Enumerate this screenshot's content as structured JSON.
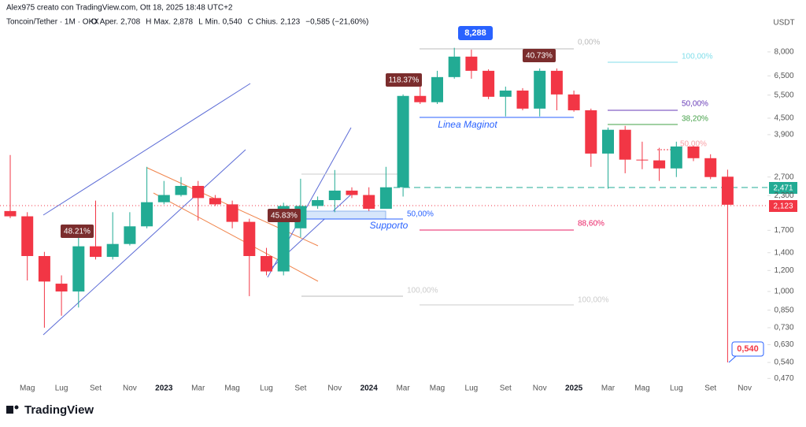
{
  "chart_data": {
    "type": "candlestick",
    "credit": "Alex975 creato con TradingView.com, Ott 18, 2025 18:48 UTC+2",
    "symbol": "Toncoin/Tether · 1M · OKX",
    "ohlc_header": [
      {
        "label": "O",
        "text": "Aper.",
        "value": "2,708"
      },
      {
        "label": "H",
        "text": "Max.",
        "value": "2,878"
      },
      {
        "label": "L",
        "text": "Min.",
        "value": "0,540"
      },
      {
        "label": "C",
        "text": "Chius.",
        "value": "2,123"
      }
    ],
    "change": "−0,585 (−21,60%)",
    "currency": "USDT",
    "brand": "TradingView",
    "categories": [
      null,
      "Mag",
      null,
      "Lug",
      null,
      "Set",
      null,
      "Nov",
      null,
      "2023",
      null,
      "Mar",
      null,
      "Mag",
      null,
      "Lug",
      null,
      "Set",
      null,
      "Nov",
      null,
      "2024",
      null,
      "Mar",
      null,
      "Mag",
      null,
      "Lug",
      null,
      "Set",
      null,
      "Nov",
      null,
      "2025",
      null,
      "Mar",
      null,
      "Mag",
      null,
      "Lug",
      null,
      "Set",
      null,
      "Nov"
    ],
    "open": [
      2.01,
      1.92,
      1.36,
      1.07,
      1.0,
      1.48,
      1.35,
      1.51,
      1.76,
      2.17,
      2.31,
      2.5,
      2.25,
      2.13,
      1.83,
      1.36,
      1.19,
      1.73,
      2.1,
      2.21,
      2.4,
      2.31,
      2.05,
      2.47,
      5.46,
      5.17,
      6.43,
      7.68,
      6.79,
      5.42,
      5.72,
      4.89,
      6.79,
      5.53,
      4.82,
      3.31,
      4.07,
      3.14,
      3.12,
      2.91,
      3.52,
      3.18,
      2.708,
      null
    ],
    "high": [
      3.27,
      1.99,
      1.41,
      1.15,
      1.73,
      2.2,
      1.99,
      1.99,
      2.95,
      2.61,
      2.7,
      2.61,
      2.31,
      2.2,
      1.88,
      1.46,
      2.16,
      2.66,
      2.28,
      2.87,
      2.47,
      2.47,
      2.95,
      5.53,
      5.92,
      6.79,
      8.29,
      8.16,
      6.88,
      5.92,
      5.84,
      6.93,
      6.93,
      5.72,
      4.89,
      4.15,
      4.21,
      3.67,
      3.48,
      3.67,
      3.55,
      3.29,
      2.878,
      null
    ],
    "low": [
      1.89,
      1.1,
      0.73,
      0.81,
      0.87,
      1.32,
      1.32,
      1.49,
      1.73,
      2.13,
      2.28,
      1.85,
      2.1,
      1.73,
      0.96,
      1.15,
      1.15,
      1.6,
      2.05,
      1.99,
      2.25,
      2.01,
      2.05,
      2.28,
      5.09,
      5.09,
      6.34,
      6.34,
      5.31,
      4.57,
      4.82,
      4.57,
      4.82,
      4.76,
      2.95,
      2.44,
      2.79,
      2.89,
      2.61,
      2.7,
      3.1,
      2.65,
      0.54,
      null
    ],
    "close": [
      1.92,
      1.36,
      1.09,
      1.0,
      1.48,
      1.35,
      1.51,
      1.76,
      2.17,
      2.31,
      2.5,
      2.25,
      2.13,
      1.83,
      1.36,
      1.19,
      2.1,
      2.1,
      2.21,
      2.4,
      2.31,
      2.05,
      2.47,
      5.46,
      5.17,
      6.43,
      7.68,
      6.79,
      5.42,
      5.72,
      4.89,
      6.79,
      5.53,
      4.82,
      3.31,
      4.07,
      3.14,
      3.12,
      2.91,
      3.52,
      3.18,
      2.7,
      2.123,
      null
    ],
    "up_color": "#22ab94",
    "down_color": "#f23645",
    "log_scale": true,
    "ylim": [
      0.44,
      9.55
    ],
    "yticks": [
      {
        "value": 8,
        "label": "8,000"
      },
      {
        "value": 6.5,
        "label": "6,500"
      },
      {
        "value": 5.5,
        "label": "5,500"
      },
      {
        "value": 4.5,
        "label": "4,500"
      },
      {
        "value": 3.9,
        "label": "3,900"
      },
      {
        "value": 2.7,
        "label": "2,700"
      },
      {
        "value": 2.3,
        "label": "2,300"
      },
      {
        "value": 1.7,
        "label": "1,700"
      },
      {
        "value": 1.4,
        "label": "1,400"
      },
      {
        "value": 1.2,
        "label": "1,200"
      },
      {
        "value": 1,
        "label": "1,000"
      },
      {
        "value": 0.85,
        "label": "0,850"
      },
      {
        "value": 0.73,
        "label": "0,730"
      },
      {
        "value": 0.63,
        "label": "0,630"
      },
      {
        "value": 0.54,
        "label": "0,540"
      },
      {
        "value": 0.47,
        "label": "0,470"
      }
    ],
    "grid": false,
    "annotations": [
      "8,288",
      "118.37%",
      "40.73%",
      "48.21%",
      "45.83%",
      "Linea Maginot",
      "Supporto",
      "0,00%",
      "100,00%",
      "50,00%",
      "38,20%",
      "50,00%",
      "88,60%",
      "100,00%",
      "100,00%",
      "50,00%",
      "2,471",
      "2,123",
      "0,540"
    ]
  }
}
